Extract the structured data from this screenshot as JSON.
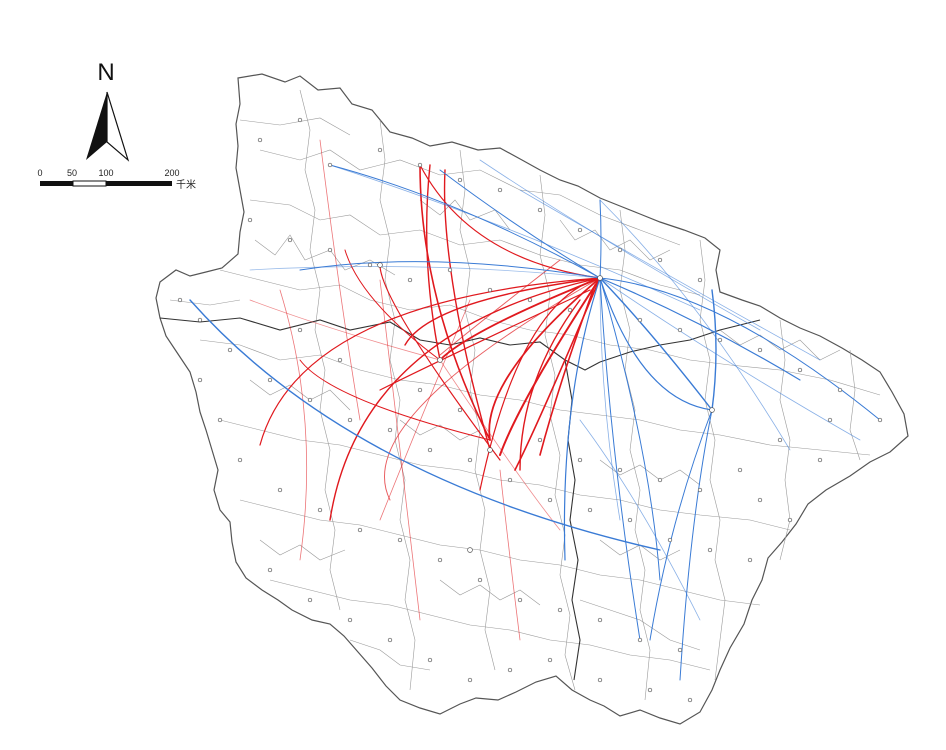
{
  "north_arrow": {
    "letter": "N",
    "icon": "north-arrow-icon"
  },
  "scale_bar": {
    "ticks": [
      "0",
      "50",
      "100",
      "200"
    ],
    "unit": "千米"
  },
  "colors": {
    "boundary": "#7a7a7a",
    "province_boundary": "#333333",
    "flow_a": "#e0191e",
    "flow_b": "#3a7bd5",
    "county_point": "#555555"
  }
}
